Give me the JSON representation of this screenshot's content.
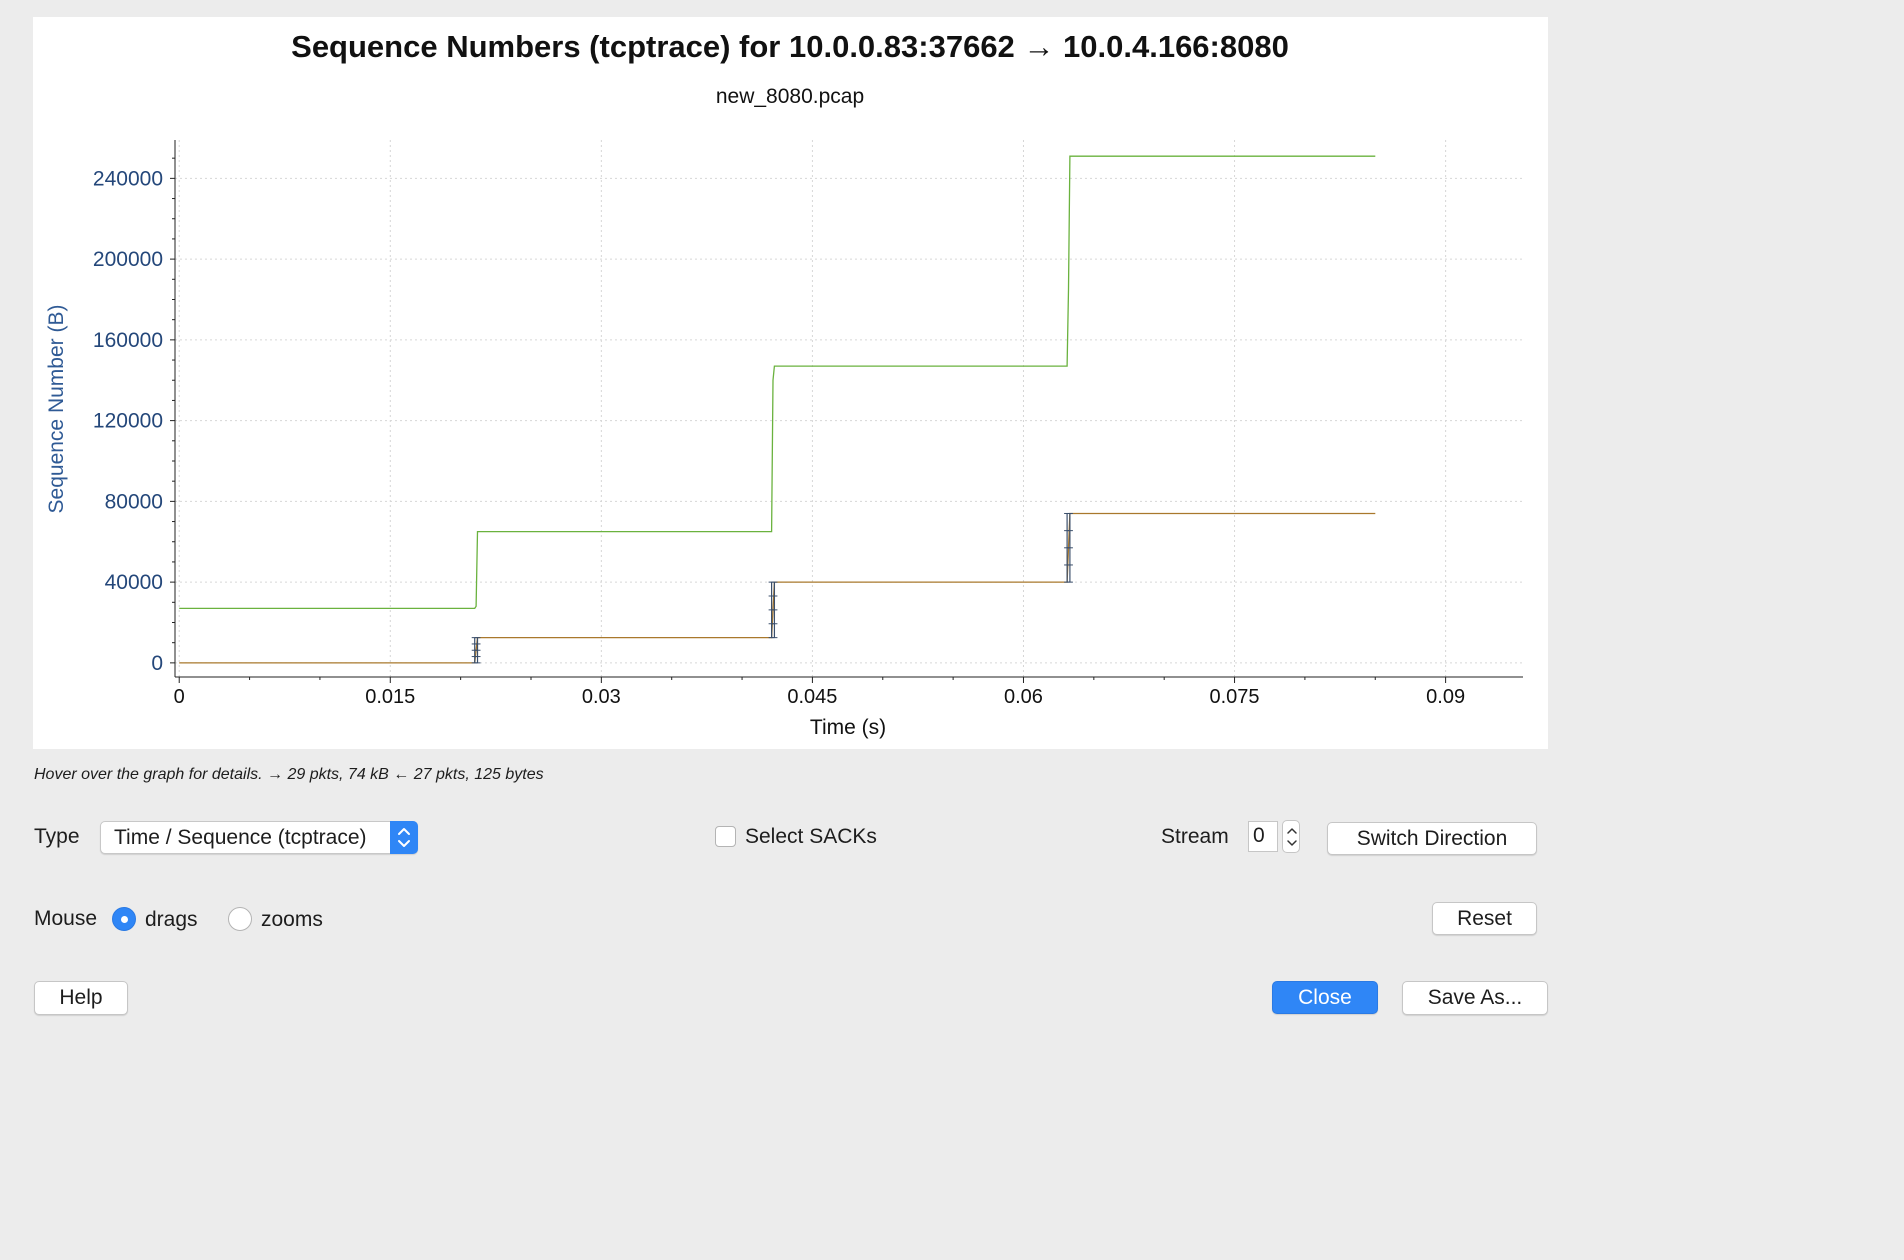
{
  "chart_data": {
    "type": "line",
    "title": "Sequence Numbers (tcptrace) for 10.0.0.83:37662 → 10.0.4.166:8080",
    "subtitle": "new_8080.pcap",
    "xlabel": "Time (s)",
    "ylabel": "Sequence Number (B)",
    "xlim": [
      -0.0003,
      0.0955
    ],
    "ylim": [
      -7000,
      259000
    ],
    "x_ticks": [
      0,
      0.015,
      0.03,
      0.045,
      0.06,
      0.075,
      0.09
    ],
    "x_tick_labels": [
      "0",
      "0.015",
      "0.03",
      "0.045",
      "0.06",
      "0.075",
      "0.09"
    ],
    "y_ticks": [
      0,
      40000,
      80000,
      120000,
      160000,
      200000,
      240000
    ],
    "y_tick_labels": [
      "0",
      "40000",
      "80000",
      "120000",
      "160000",
      "200000",
      "240000"
    ],
    "grid": true,
    "series": [
      {
        "color": "#6ab23e",
        "x": [
          0,
          0.021,
          0.0211,
          0.0212,
          0.0421,
          0.0422,
          0.0423,
          0.0631,
          0.0632,
          0.0633,
          0.085
        ],
        "y": [
          27000,
          27000,
          28000,
          65000,
          65000,
          140000,
          147000,
          147000,
          185000,
          251000,
          251000
        ]
      },
      {
        "color": "#a9782c",
        "x": [
          0,
          0.021,
          0.0212,
          0.0421,
          0.0423,
          0.0631,
          0.0633,
          0.085
        ],
        "y": [
          0,
          0,
          12500,
          12500,
          40000,
          40000,
          74000,
          74000
        ]
      },
      {
        "color": "#3b4f6b",
        "segments_x": [
          0.021,
          0.0212,
          0.0421,
          0.0423,
          0.0631,
          0.0633
        ],
        "segments_y": [
          [
            0,
            12500
          ],
          [
            0,
            12500
          ],
          [
            12500,
            40000
          ],
          [
            12500,
            40000
          ],
          [
            40000,
            74000
          ],
          [
            40000,
            74000
          ]
        ]
      }
    ]
  },
  "status_hint": "Hover over the graph for details. → 29 pkts, 74 kB ← 27 pkts, 125 bytes",
  "controls": {
    "type_label": "Type",
    "type_value": "Time / Sequence (tcptrace)",
    "select_sacks_label": "Select SACKs",
    "select_sacks_checked": false,
    "stream_label": "Stream",
    "stream_value": "0",
    "switch_direction_label": "Switch Direction",
    "mouse_label": "Mouse",
    "mouse_drags_label": "drags",
    "mouse_zooms_label": "zooms",
    "mouse_mode": "drags",
    "reset_label": "Reset"
  },
  "footer": {
    "help_label": "Help",
    "close_label": "Close",
    "save_as_label": "Save As..."
  },
  "colors": {
    "accent": "#2f86f6",
    "axis_text": "#24477a",
    "green_series": "#6ab23e",
    "brown_series": "#a9782c"
  }
}
